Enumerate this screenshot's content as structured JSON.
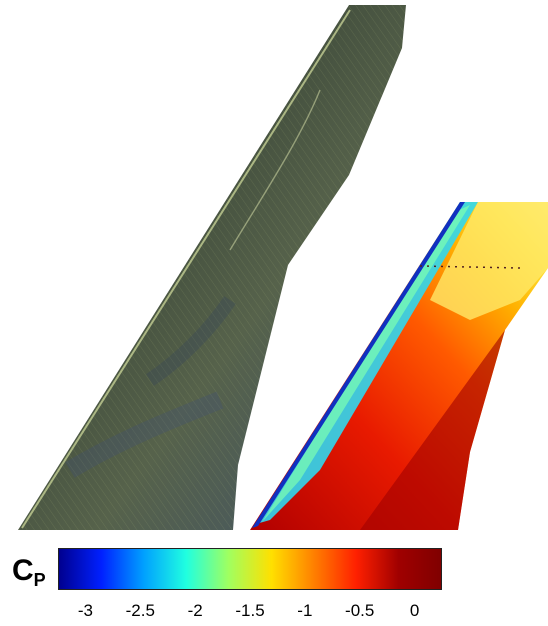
{
  "colorbar": {
    "symbol": "C",
    "subscript": "P",
    "min": -3.25,
    "max": 0.25,
    "ticks": [
      {
        "value": -3,
        "label": "-3"
      },
      {
        "value": -2.5,
        "label": "-2.5"
      },
      {
        "value": -2,
        "label": "-2"
      },
      {
        "value": -1.5,
        "label": "-1.5"
      },
      {
        "value": -1,
        "label": "-1"
      },
      {
        "value": -0.5,
        "label": "-0.5"
      },
      {
        "value": 0,
        "label": "0"
      }
    ],
    "colors": [
      "#00008f",
      "#0020ff",
      "#00a0ff",
      "#20ffe0",
      "#a0ff60",
      "#ffe000",
      "#ff8000",
      "#ff2000",
      "#a00000",
      "#800000"
    ]
  }
}
